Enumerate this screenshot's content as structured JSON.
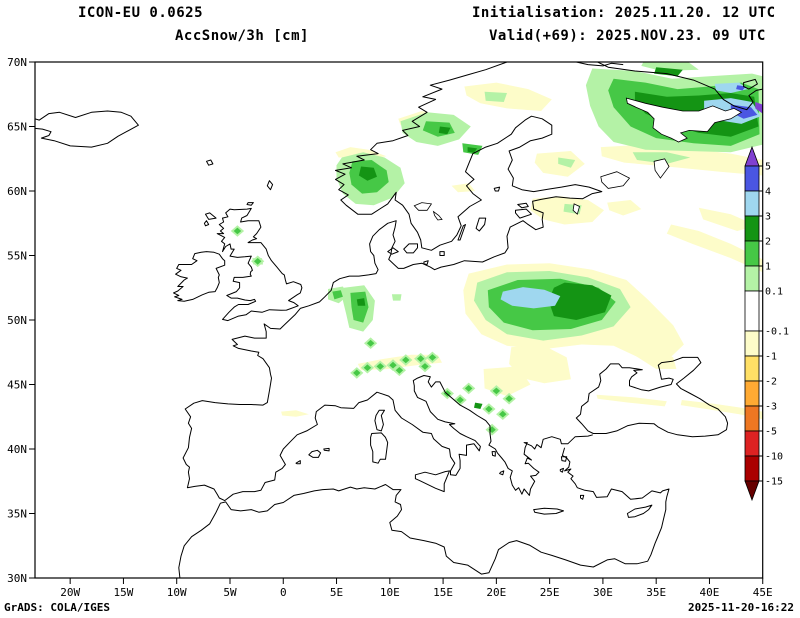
{
  "header": {
    "model_title": "ICON-EU 0.0625",
    "field_title": "AccSnow/3h [cm]",
    "init_text": "Initialisation: 2025.11.20. 12 UTC",
    "valid_text": "Valid(+69): 2025.NOV.23. 09 UTC"
  },
  "footer": {
    "left_text": "GrADS: COLA/IGES",
    "right_text": "2025-11-20-16:22"
  },
  "map": {
    "lat_ticks": [
      "70N",
      "65N",
      "60N",
      "55N",
      "50N",
      "45N",
      "40N",
      "35N",
      "30N"
    ],
    "lon_ticks": [
      "20W",
      "15W",
      "10W",
      "5W",
      "0",
      "5E",
      "10E",
      "15E",
      "20E",
      "25E",
      "30E",
      "35E",
      "40E",
      "45E"
    ]
  },
  "colorbar": {
    "unit": "cm",
    "labels_top_to_bottom": [
      "5",
      "4",
      "3",
      "2",
      "1",
      "0.1",
      "-0.1",
      "-1",
      "-2",
      "-3",
      "-5",
      "-10",
      "-15"
    ],
    "colors_top_to_bottom": [
      "#8040d0",
      "#4a56e2",
      "#9fd7ef",
      "#149414",
      "#46c846",
      "#b4f2a6",
      "#ffffff",
      "#fdfcc9",
      "#ffe066",
      "#ffaa33",
      "#ee7722",
      "#dd2222",
      "#aa0000",
      "#660000"
    ]
  }
}
